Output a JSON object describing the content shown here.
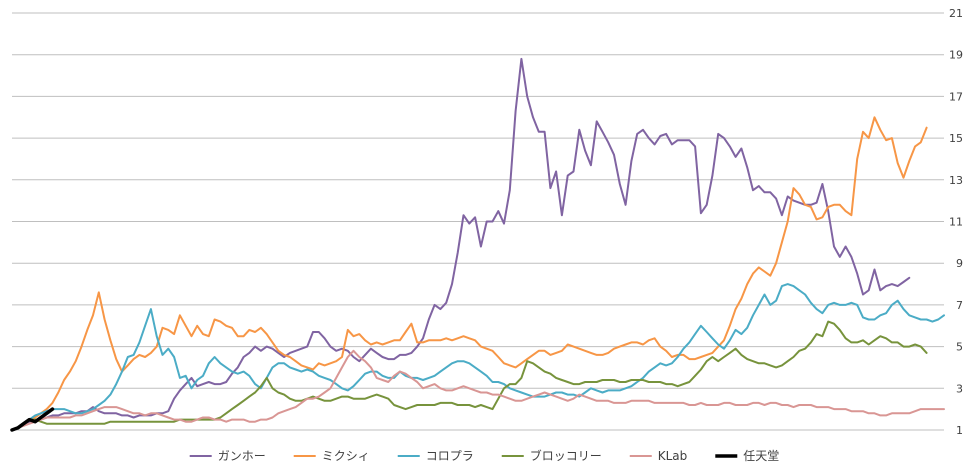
{
  "chart_data": {
    "type": "line",
    "title": "",
    "xlabel": "",
    "ylabel": "",
    "ylim": [
      1,
      21
    ],
    "yticks": [
      1,
      3,
      5,
      7,
      9,
      11,
      13,
      15,
      17,
      19,
      21
    ],
    "grid": "horizontal",
    "legend": "bottom",
    "series": [
      {
        "name": "ガンホー",
        "color": "#8064A2",
        "width": 2,
        "values": [
          1,
          1.1,
          1.3,
          1.4,
          1.5,
          1.5,
          1.6,
          1.7,
          1.7,
          1.8,
          1.8,
          1.8,
          1.9,
          1.9,
          2.1,
          1.9,
          1.8,
          1.8,
          1.8,
          1.7,
          1.7,
          1.6,
          1.7,
          1.7,
          1.7,
          1.8,
          1.8,
          1.9,
          2.5,
          2.9,
          3.2,
          3.5,
          3.1,
          3.2,
          3.3,
          3.2,
          3.2,
          3.3,
          3.7,
          4.0,
          4.5,
          4.7,
          5.0,
          4.8,
          5.0,
          4.9,
          4.7,
          4.5,
          4.7,
          4.8,
          4.9,
          5.0,
          5.7,
          5.7,
          5.4,
          5.0,
          4.8,
          4.9,
          4.8,
          4.5,
          4.3,
          4.6,
          4.9,
          4.7,
          4.5,
          4.4,
          4.4,
          4.6,
          4.6,
          4.7,
          5.0,
          5.4,
          6.3,
          7.0,
          6.8,
          7.1,
          8.0,
          9.5,
          11.3,
          10.9,
          11.2,
          9.8,
          11.0,
          11.0,
          11.5,
          10.9,
          12.5,
          16.3,
          18.8,
          17.0,
          16.0,
          15.3,
          15.3,
          12.6,
          13.4,
          11.3,
          13.2,
          13.4,
          15.4,
          14.4,
          13.7,
          15.8,
          15.3,
          14.8,
          14.2,
          12.8,
          11.8,
          13.9,
          15.2,
          15.4,
          15.0,
          14.7,
          15.1,
          15.2,
          14.7,
          14.9,
          14.9,
          14.9,
          14.6,
          11.4,
          11.8,
          13.2,
          15.2,
          15.0,
          14.6,
          14.1,
          14.5,
          13.6,
          12.5,
          12.7,
          12.4,
          12.4,
          12.1,
          11.3,
          12.2,
          12.0,
          11.9,
          11.8,
          11.8,
          11.9,
          12.8,
          11.5,
          9.8,
          9.3,
          9.8,
          9.3,
          8.5,
          7.5,
          7.7,
          8.7,
          7.7,
          7.9,
          8.0,
          7.9,
          8.1,
          8.3
        ]
      },
      {
        "name": "ミクシィ",
        "color": "#F79646",
        "width": 2,
        "values": [
          1,
          1.1,
          1.3,
          1.5,
          1.6,
          1.8,
          2.0,
          2.3,
          2.8,
          3.4,
          3.8,
          4.3,
          5.0,
          5.8,
          6.5,
          7.6,
          6.3,
          5.3,
          4.4,
          3.8,
          4.1,
          4.4,
          4.6,
          4.5,
          4.7,
          5.0,
          5.9,
          5.8,
          5.6,
          6.5,
          6.0,
          5.5,
          6.0,
          5.6,
          5.5,
          6.3,
          6.2,
          6.0,
          5.9,
          5.5,
          5.5,
          5.8,
          5.7,
          5.9,
          5.6,
          5.2,
          4.8,
          4.6,
          4.5,
          4.3,
          4.1,
          4.0,
          3.9,
          4.2,
          4.1,
          4.2,
          4.3,
          4.5,
          5.8,
          5.5,
          5.6,
          5.3,
          5.1,
          5.2,
          5.1,
          5.2,
          5.3,
          5.3,
          5.7,
          6.1,
          5.2,
          5.2,
          5.3,
          5.3,
          5.3,
          5.4,
          5.3,
          5.4,
          5.5,
          5.4,
          5.3,
          5.0,
          4.9,
          4.8,
          4.5,
          4.2,
          4.1,
          4.0,
          4.2,
          4.4,
          4.6,
          4.8,
          4.8,
          4.6,
          4.7,
          4.8,
          5.1,
          5.0,
          4.9,
          4.8,
          4.7,
          4.6,
          4.6,
          4.7,
          4.9,
          5.0,
          5.1,
          5.2,
          5.2,
          5.1,
          5.3,
          5.4,
          5.0,
          4.8,
          4.5,
          4.6,
          4.6,
          4.4,
          4.4,
          4.5,
          4.6,
          4.7,
          5.0,
          5.3,
          6.0,
          6.8,
          7.3,
          8.0,
          8.5,
          8.8,
          8.6,
          8.4,
          9.0,
          10.0,
          11.0,
          12.6,
          12.3,
          11.8,
          11.7,
          11.1,
          11.2,
          11.7,
          11.8,
          11.8,
          11.5,
          11.3,
          14.0,
          15.3,
          15.0,
          16.0,
          15.4,
          14.9,
          15.0,
          13.8,
          13.1,
          13.9,
          14.6,
          14.8,
          15.5
        ]
      },
      {
        "name": "コロプラ",
        "color": "#4BACC6",
        "width": 2,
        "values": [
          1,
          1.1,
          1.3,
          1.5,
          1.7,
          1.8,
          1.9,
          2.0,
          2.0,
          2.0,
          1.9,
          1.8,
          1.8,
          1.9,
          2.0,
          2.2,
          2.4,
          2.7,
          3.2,
          3.8,
          4.5,
          4.6,
          5.2,
          6.0,
          6.8,
          5.5,
          4.6,
          4.9,
          4.5,
          3.5,
          3.6,
          3.0,
          3.4,
          3.6,
          4.2,
          4.5,
          4.2,
          4.0,
          3.8,
          3.7,
          3.8,
          3.6,
          3.2,
          3.0,
          3.5,
          4.0,
          4.2,
          4.2,
          4.0,
          3.9,
          3.8,
          3.9,
          3.8,
          3.6,
          3.5,
          3.4,
          3.2,
          3.0,
          2.9,
          3.1,
          3.4,
          3.7,
          3.8,
          3.8,
          3.6,
          3.5,
          3.5,
          3.8,
          3.6,
          3.5,
          3.5,
          3.4,
          3.5,
          3.6,
          3.8,
          4.0,
          4.2,
          4.3,
          4.3,
          4.2,
          4.0,
          3.8,
          3.6,
          3.3,
          3.3,
          3.2,
          3.0,
          2.9,
          2.8,
          2.7,
          2.6,
          2.6,
          2.6,
          2.7,
          2.8,
          2.8,
          2.7,
          2.7,
          2.6,
          2.8,
          3.0,
          2.9,
          2.8,
          2.9,
          2.9,
          2.9,
          3.0,
          3.1,
          3.3,
          3.5,
          3.8,
          4.0,
          4.2,
          4.1,
          4.2,
          4.5,
          4.9,
          5.2,
          5.6,
          6.0,
          5.7,
          5.4,
          5.1,
          4.9,
          5.3,
          5.8,
          5.6,
          5.9,
          6.5,
          7.0,
          7.5,
          7.0,
          7.2,
          7.9,
          8.0,
          7.9,
          7.7,
          7.5,
          7.1,
          6.8,
          6.6,
          7.0,
          7.1,
          7.0,
          7.0,
          7.1,
          7.0,
          6.4,
          6.3,
          6.3,
          6.5,
          6.6,
          7.0,
          7.2,
          6.8,
          6.5,
          6.4,
          6.3,
          6.3,
          6.2,
          6.3,
          6.5
        ]
      },
      {
        "name": "ブロッコリー",
        "color": "#77933C",
        "width": 2,
        "values": [
          1,
          1.1,
          1.3,
          1.5,
          1.5,
          1.4,
          1.3,
          1.3,
          1.3,
          1.3,
          1.3,
          1.3,
          1.3,
          1.3,
          1.3,
          1.3,
          1.3,
          1.4,
          1.4,
          1.4,
          1.4,
          1.4,
          1.4,
          1.4,
          1.4,
          1.4,
          1.4,
          1.4,
          1.4,
          1.5,
          1.5,
          1.5,
          1.5,
          1.5,
          1.5,
          1.5,
          1.6,
          1.8,
          2.0,
          2.2,
          2.4,
          2.6,
          2.8,
          3.1,
          3.5,
          3.0,
          2.8,
          2.7,
          2.5,
          2.4,
          2.4,
          2.5,
          2.6,
          2.5,
          2.4,
          2.4,
          2.5,
          2.6,
          2.6,
          2.5,
          2.5,
          2.5,
          2.6,
          2.7,
          2.6,
          2.5,
          2.2,
          2.1,
          2.0,
          2.1,
          2.2,
          2.2,
          2.2,
          2.2,
          2.3,
          2.3,
          2.3,
          2.2,
          2.2,
          2.2,
          2.1,
          2.2,
          2.1,
          2.0,
          2.5,
          3.0,
          3.2,
          3.2,
          3.5,
          4.3,
          4.2,
          4.0,
          3.8,
          3.7,
          3.5,
          3.4,
          3.3,
          3.2,
          3.2,
          3.3,
          3.3,
          3.3,
          3.4,
          3.4,
          3.4,
          3.3,
          3.3,
          3.4,
          3.4,
          3.4,
          3.3,
          3.3,
          3.3,
          3.2,
          3.2,
          3.1,
          3.2,
          3.3,
          3.6,
          3.9,
          4.3,
          4.5,
          4.3,
          4.5,
          4.7,
          4.9,
          4.6,
          4.4,
          4.3,
          4.2,
          4.2,
          4.1,
          4.0,
          4.1,
          4.3,
          4.5,
          4.8,
          4.9,
          5.2,
          5.6,
          5.5,
          6.2,
          6.1,
          5.8,
          5.4,
          5.2,
          5.2,
          5.3,
          5.1,
          5.3,
          5.5,
          5.4,
          5.2,
          5.2,
          5.0,
          5.0,
          5.1,
          5.0,
          4.7
        ]
      },
      {
        "name": "KLab",
        "color": "#D99694",
        "width": 2,
        "values": [
          1,
          1.1,
          1.2,
          1.3,
          1.4,
          1.5,
          1.6,
          1.6,
          1.6,
          1.6,
          1.6,
          1.7,
          1.7,
          1.8,
          1.9,
          2.0,
          2.1,
          2.1,
          2.1,
          2.0,
          1.9,
          1.8,
          1.8,
          1.7,
          1.8,
          1.8,
          1.7,
          1.6,
          1.5,
          1.5,
          1.4,
          1.4,
          1.5,
          1.6,
          1.6,
          1.5,
          1.5,
          1.4,
          1.5,
          1.5,
          1.5,
          1.4,
          1.4,
          1.5,
          1.5,
          1.6,
          1.8,
          1.9,
          2.0,
          2.1,
          2.3,
          2.5,
          2.5,
          2.6,
          2.8,
          3.0,
          3.5,
          4.0,
          4.5,
          4.8,
          4.5,
          4.3,
          4.0,
          3.5,
          3.4,
          3.3,
          3.6,
          3.8,
          3.7,
          3.5,
          3.3,
          3.0,
          3.1,
          3.2,
          3.0,
          2.9,
          2.9,
          3.0,
          3.1,
          3.0,
          2.9,
          2.8,
          2.8,
          2.7,
          2.7,
          2.6,
          2.5,
          2.4,
          2.4,
          2.5,
          2.6,
          2.7,
          2.8,
          2.7,
          2.6,
          2.5,
          2.4,
          2.5,
          2.7,
          2.6,
          2.5,
          2.4,
          2.4,
          2.4,
          2.3,
          2.3,
          2.3,
          2.4,
          2.4,
          2.4,
          2.4,
          2.3,
          2.3,
          2.3,
          2.3,
          2.3,
          2.3,
          2.2,
          2.2,
          2.3,
          2.2,
          2.2,
          2.2,
          2.3,
          2.3,
          2.2,
          2.2,
          2.2,
          2.3,
          2.3,
          2.2,
          2.3,
          2.3,
          2.2,
          2.2,
          2.1,
          2.2,
          2.2,
          2.2,
          2.1,
          2.1,
          2.1,
          2.0,
          2.0,
          2.0,
          1.9,
          1.9,
          1.9,
          1.8,
          1.8,
          1.7,
          1.7,
          1.8,
          1.8,
          1.8,
          1.8,
          1.9,
          2.0,
          2.0,
          2.0,
          2.0,
          2.0
        ]
      },
      {
        "name": "任天堂",
        "color": "#000000",
        "width": 3.5,
        "values": [
          1,
          1.1,
          1.3,
          1.5,
          1.4,
          1.6,
          1.8,
          2.0
        ]
      }
    ]
  }
}
